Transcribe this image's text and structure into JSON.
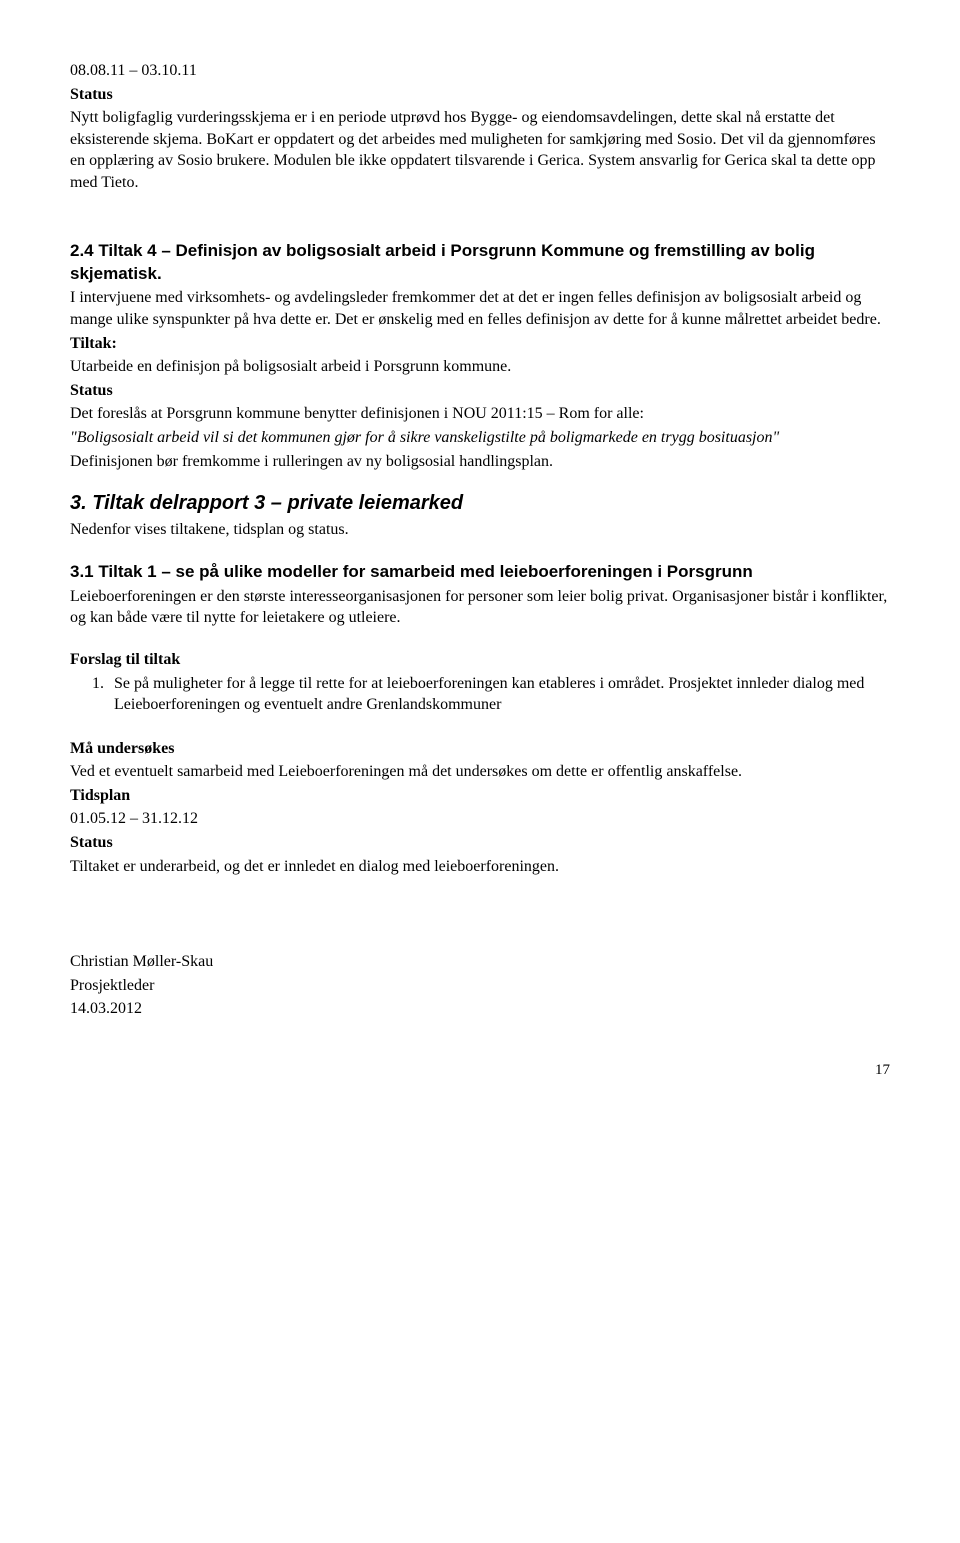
{
  "sec0": {
    "dates": "08.08.11 – 03.10.11",
    "statusLabel": "Status",
    "body": "Nytt boligfaglig vurderingsskjema er i en periode utprøvd hos Bygge- og eiendomsavdelingen, dette skal nå erstatte det eksisterende skjema. BoKart er oppdatert og det arbeides med muligheten for samkjøring med Sosio. Det vil da gjennomføres en opplæring av Sosio brukere. Modulen ble ikke oppdatert tilsvarende i Gerica. System ansvarlig for Gerica skal ta dette opp med Tieto."
  },
  "sec24": {
    "heading": "2.4 Tiltak 4 – Definisjon av boligsosialt arbeid i Porsgrunn Kommune og fremstilling av bolig skjematisk.",
    "body": "I intervjuene med virksomhets- og avdelingsleder fremkommer det at det er ingen felles definisjon av boligsosialt arbeid og mange ulike synspunkter på hva dette er. Det er ønskelig med en felles definisjon av dette for å kunne målrettet arbeidet bedre.",
    "tiltakLabel": "Tiltak:",
    "tiltakBody": "Utarbeide en definisjon på boligsosialt arbeid i Porsgrunn kommune.",
    "statusLabel": "Status",
    "statusLine1": "Det foreslås at Porsgrunn kommune benytter definisjonen i NOU 2011:15 – Rom for alle:",
    "statusQuote": "\"Boligsosialt arbeid vil si det kommunen gjør for å sikre vanskeligstilte på boligmarkede en trygg bosituasjon\"",
    "statusLine2": "Definisjonen bør fremkomme i rulleringen av ny boligsosial handlingsplan."
  },
  "sec3": {
    "heading": "3. Tiltak delrapport 3 – private leiemarked",
    "intro": "Nedenfor vises tiltakene, tidsplan og status."
  },
  "sec31": {
    "heading": "3.1 Tiltak 1 – se på ulike modeller for samarbeid med leieboerforeningen i Porsgrunn",
    "body": "Leieboerforeningen er den største interesseorganisasjonen for personer som leier bolig privat. Organisasjoner bistår i konflikter, og kan både være til nytte for leietakere og utleiere.",
    "forslagLabel": "Forslag til tiltak",
    "forslagItem1": "Se på muligheter for å legge til rette for at leieboerforeningen kan etableres i området. Prosjektet innleder dialog med Leieboerforeningen og eventuelt andre Grenlandskommuner",
    "maLabel": "Må undersøkes",
    "maBody": "Ved et eventuelt samarbeid med Leieboerforeningen må det undersøkes om dette er offentlig anskaffelse.",
    "tidsplanLabel": "Tidsplan",
    "tidsplan": "01.05.12 – 31.12.12",
    "statusLabel": "Status",
    "statusBody": "Tiltaket er underarbeid, og det er innledet en dialog med leieboerforeningen."
  },
  "footer": {
    "name": "Christian Møller-Skau",
    "role": "Prosjektleder",
    "date": "14.03.2012"
  },
  "pageNumber": "17"
}
